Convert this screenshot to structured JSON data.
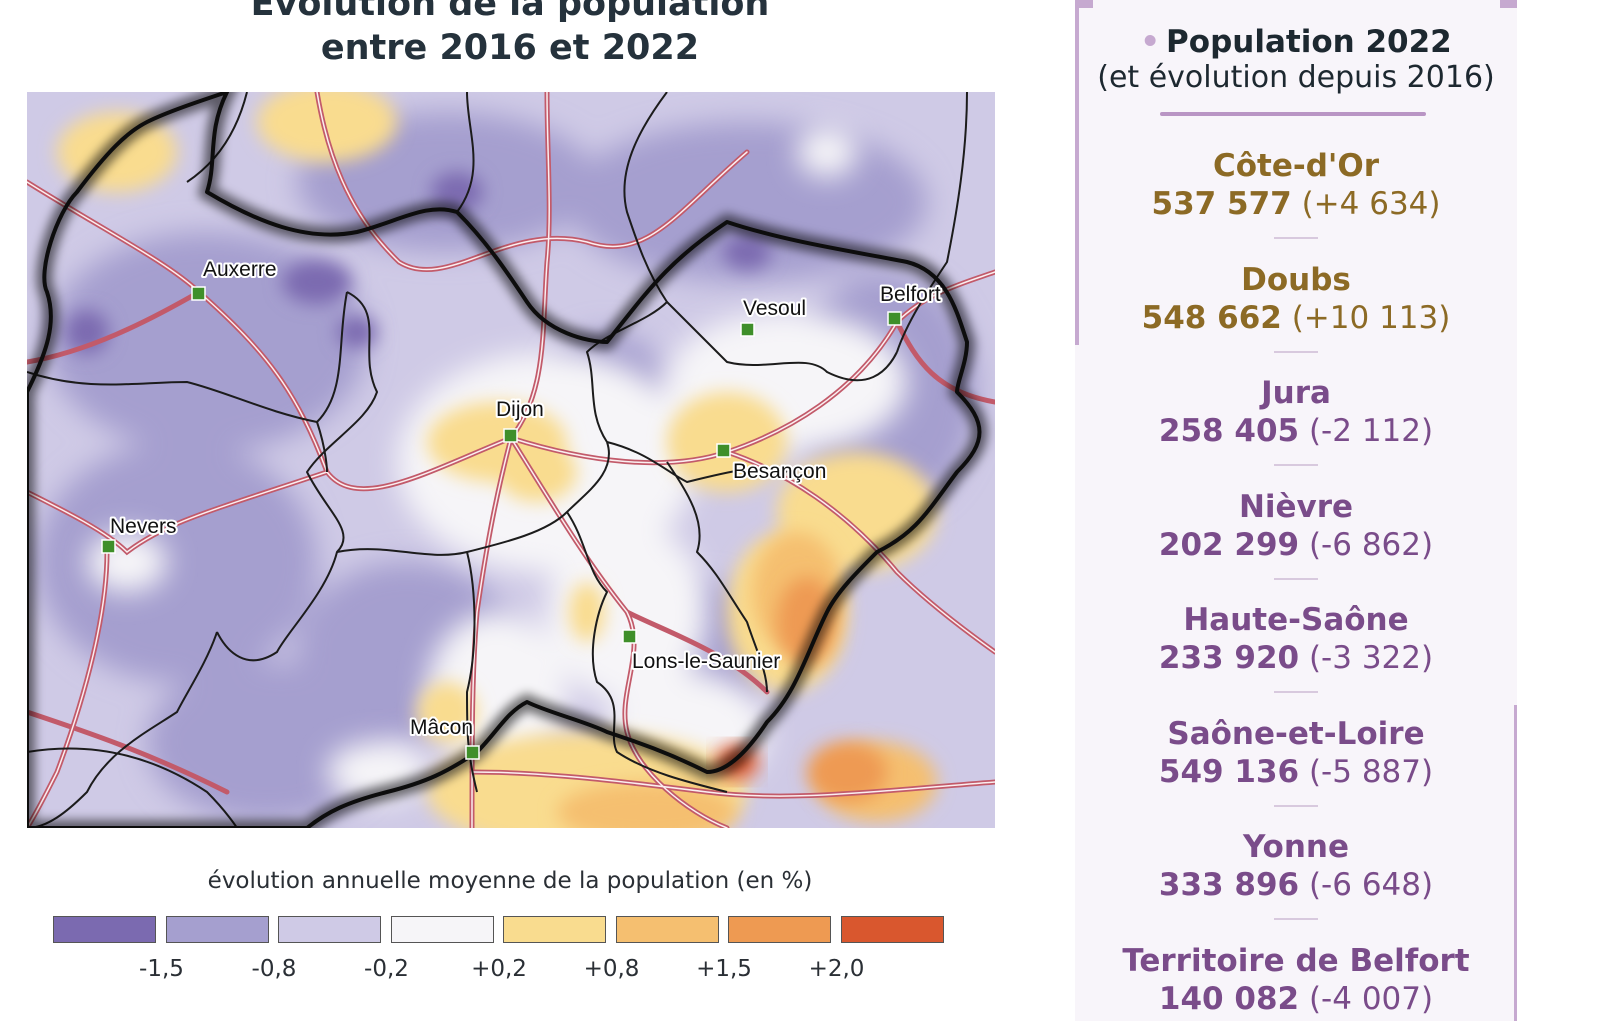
{
  "title": {
    "line1": "Évolution de la population",
    "line2": "entre 2016 et 2022"
  },
  "map": {
    "cities": [
      {
        "name": "Auxerre"
      },
      {
        "name": "Vesoul"
      },
      {
        "name": "Belfort"
      },
      {
        "name": "Dijon"
      },
      {
        "name": "Besançon"
      },
      {
        "name": "Nevers"
      },
      {
        "name": "Lons-le-Saunier"
      },
      {
        "name": "Mâcon"
      }
    ],
    "city_marker_color": "#3f8f2a"
  },
  "legend": {
    "title": "évolution annuelle moyenne de la population (en %)",
    "colors": [
      "#7b6ab0",
      "#a59fcf",
      "#cfcae6",
      "#f6f5f8",
      "#f9dc8f",
      "#f5bf70",
      "#ee9a52",
      "#d9572e"
    ],
    "ticks": [
      "-1,5",
      "-0,8",
      "-0,2",
      "+0,2",
      "+0,8",
      "+1,5",
      "+2,0"
    ]
  },
  "panel": {
    "title": "Population 2022",
    "subtitle": "(et évolution depuis 2016)",
    "departments": [
      {
        "name": "Côte-d'Or",
        "population": "537 577",
        "change": "(+4 634)",
        "color": "#8c6a25"
      },
      {
        "name": "Doubs",
        "population": "548 662",
        "change": "(+10 113)",
        "color": "#8c6a25"
      },
      {
        "name": "Jura",
        "population": "258 405",
        "change": "(-2 112)",
        "color": "#7a4c8a"
      },
      {
        "name": "Nièvre",
        "population": "202 299",
        "change": "(-6 862)",
        "color": "#7a4c8a"
      },
      {
        "name": "Haute-Saône",
        "population": "233 920",
        "change": "(-3 322)",
        "color": "#7a4c8a"
      },
      {
        "name": "Saône-et-Loire",
        "population": "549 136",
        "change": "(-5 887)",
        "color": "#7a4c8a"
      },
      {
        "name": "Yonne",
        "population": "333 896",
        "change": "(-6 648)",
        "color": "#7a4c8a"
      },
      {
        "name": "Territoire de Belfort",
        "population": "140 082",
        "change": "(-4 007)",
        "color": "#7a4c8a"
      }
    ]
  }
}
